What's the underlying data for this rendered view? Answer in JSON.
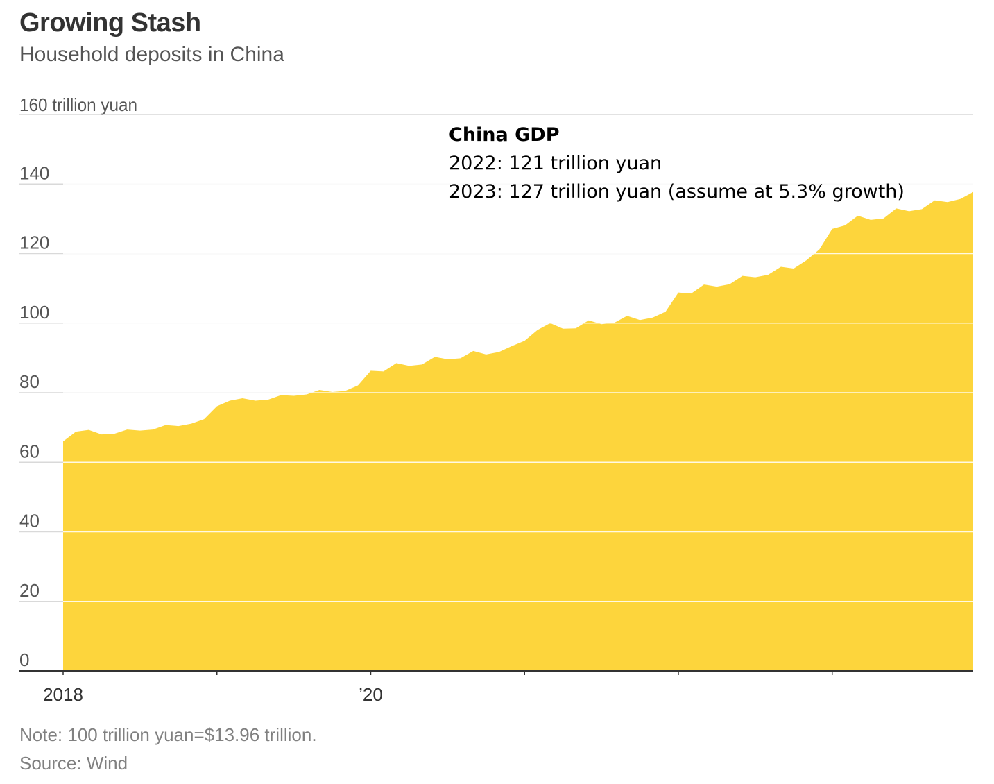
{
  "chart_data": {
    "type": "area",
    "title": "Growing Stash",
    "subtitle": "Household deposits in China",
    "y_unit_label": "160 trillion yuan",
    "ylim": [
      0,
      160
    ],
    "y_ticks": [
      0,
      20,
      40,
      60,
      80,
      100,
      120,
      140
    ],
    "y_tick_labels": [
      "0",
      "20",
      "40",
      "60",
      "80",
      "100",
      "120",
      "140"
    ],
    "x_tick_labels": [
      {
        "date": "2018-01",
        "label": "2018"
      },
      {
        "date": "2019-01",
        "label": ""
      },
      {
        "date": "2020-01",
        "label": "’20"
      },
      {
        "date": "2021-01",
        "label": ""
      },
      {
        "date": "2022-01",
        "label": ""
      },
      {
        "date": "2023-01",
        "label": ""
      }
    ],
    "grid": true,
    "color": "#fdd53c",
    "series": [
      {
        "name": "",
        "x_start": "2018-01",
        "frequency": "monthly",
        "x_end": "2023-12",
        "values": [
          66.0,
          68.8,
          69.3,
          68.0,
          68.2,
          69.4,
          69.1,
          69.4,
          70.7,
          70.4,
          71.1,
          72.4,
          76.1,
          77.7,
          78.4,
          77.7,
          78.0,
          79.3,
          79.1,
          79.5,
          80.8,
          80.2,
          80.5,
          82.1,
          86.3,
          86.1,
          88.5,
          87.7,
          88.1,
          90.3,
          89.6,
          89.9,
          92.0,
          91.0,
          91.7,
          93.4,
          94.9,
          98.0,
          100.0,
          98.4,
          98.5,
          100.8,
          99.7,
          100.1,
          102.1,
          100.9,
          101.6,
          103.3,
          108.8,
          108.5,
          111.1,
          110.5,
          111.2,
          113.6,
          113.2,
          113.9,
          116.2,
          115.7,
          118.1,
          121.2,
          127.1,
          128.1,
          130.9,
          129.7,
          130.1,
          133.0,
          132.2,
          132.8,
          135.3,
          134.8,
          135.7,
          137.7
        ]
      }
    ]
  },
  "annotation": {
    "heading": "China GDP",
    "line1": "2022: 121 trillion yuan",
    "line2": "2023: 127 trillion yuan (assume at 5.3% growth)"
  },
  "footer": {
    "note": "Note: 100 trillion yuan=$13.96 trillion.",
    "source": "Source: Wind"
  }
}
